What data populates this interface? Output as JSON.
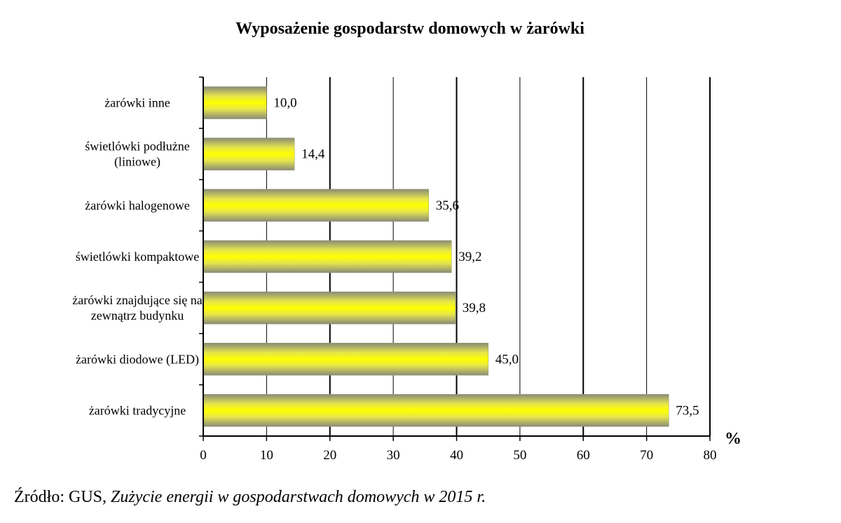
{
  "chart_data": {
    "type": "bar",
    "orientation": "horizontal",
    "title": "Wyposażenie gospodarstw domowych w żarówki",
    "xlabel": "%",
    "ylabel": "",
    "xlim": [
      0,
      80
    ],
    "x_ticks": [
      "0",
      "10",
      "20",
      "30",
      "40",
      "50",
      "60",
      "70",
      "80"
    ],
    "grid": "vertical",
    "categories": [
      "żarówki inne",
      "świetlówki podłużne (liniowe)",
      "żarówki halogenowe",
      "świetlówki kompaktowe",
      "żarówki znajdujące się na zewnątrz budynku",
      "żarówki diodowe (LED)",
      "żarówki tradycyjne"
    ],
    "category_lines": [
      [
        "żarówki inne"
      ],
      [
        "świetlówki podłużne",
        "(liniowe)"
      ],
      [
        "żarówki halogenowe"
      ],
      [
        "świetlówki kompaktowe"
      ],
      [
        "żarówki znajdujące się na",
        "zewnątrz budynku"
      ],
      [
        "żarówki diodowe (LED)"
      ],
      [
        "żarówki tradycyjne"
      ]
    ],
    "values": [
      10.0,
      14.4,
      35.6,
      39.2,
      39.8,
      45.0,
      73.5
    ],
    "value_labels": [
      "10,0",
      "14,4",
      "35,6",
      "39,2",
      "39,8",
      "45,0",
      "73,5"
    ],
    "colors": {
      "bar_center": "#ffff00",
      "bar_edge": "#808080",
      "grid": "#000000"
    }
  },
  "source": {
    "prefix": "Źródło: GUS, ",
    "title": "Zużycie energii w gospodarstwach domowych w 2015 r."
  }
}
